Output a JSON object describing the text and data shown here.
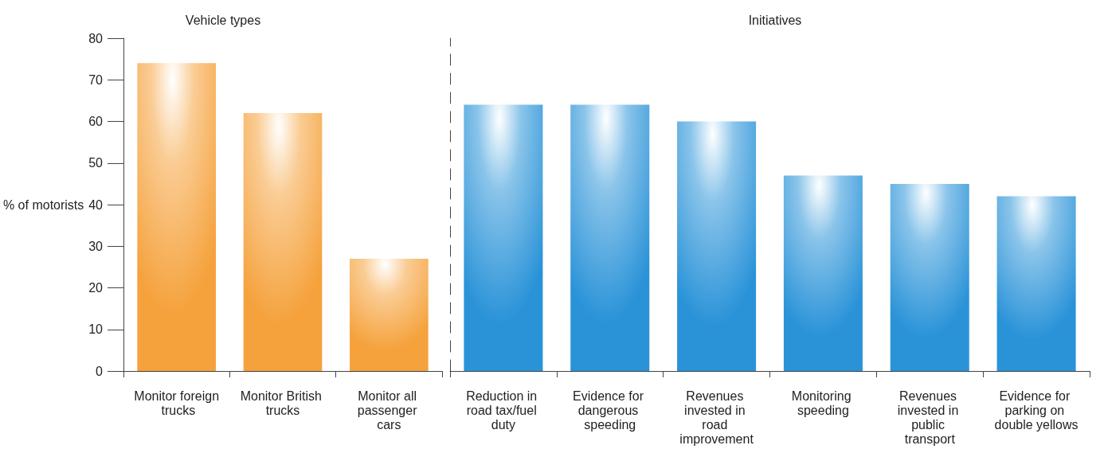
{
  "chart_data": [
    {
      "type": "bar",
      "title": "Vehicle types",
      "ylabel": "% of motorists",
      "categories": [
        "Monitor foreign trucks",
        "Monitor British trucks",
        "Monitor all passenger cars"
      ],
      "values": [
        74,
        62,
        27
      ],
      "color": "#f5a23c",
      "ylim": [
        0,
        80
      ],
      "yticks": [
        0,
        10,
        20,
        30,
        40,
        50,
        60,
        70,
        80
      ],
      "grid": false
    },
    {
      "type": "bar",
      "title": "Initiatives",
      "categories": [
        "Reduction in road tax/fuel duty",
        "Evidence for dangerous speeding",
        "Revenues invested in road improvement",
        "Monitoring speeding",
        "Revenues invested in public transport",
        "Evidence for parking on double yellows"
      ],
      "values": [
        64,
        64,
        60,
        47,
        45,
        42
      ],
      "color": "#2a93d8",
      "ylim": [
        0,
        80
      ],
      "yticks": [
        0,
        10,
        20,
        30,
        40,
        50,
        60,
        70,
        80
      ],
      "tick_labels": "x",
      "grid": false
    }
  ]
}
